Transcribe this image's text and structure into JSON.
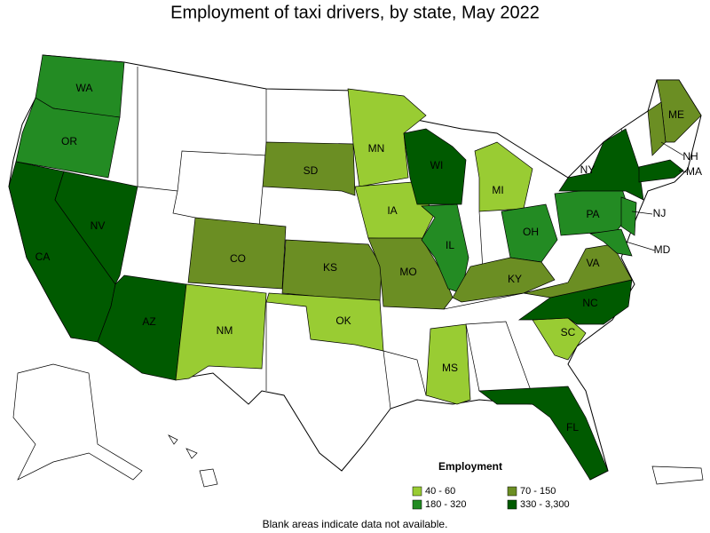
{
  "title": "Employment of taxi drivers, by state, May 2022",
  "legend": {
    "title": "Employment",
    "items": [
      {
        "label": "40 - 60",
        "color": "#99cc33"
      },
      {
        "label": "70 - 150",
        "color": "#6b8e23"
      },
      {
        "label": "180 - 320",
        "color": "#238b23"
      },
      {
        "label": "330 - 3,300",
        "color": "#005a00"
      }
    ]
  },
  "states": [
    {
      "label": "WA",
      "color": "#238b23"
    },
    {
      "label": "OR",
      "color": "#238b23"
    },
    {
      "label": "CA",
      "color": "#005a00"
    },
    {
      "label": "NV",
      "color": "#005a00"
    },
    {
      "label": "AZ",
      "color": "#005a00"
    },
    {
      "label": "NM",
      "color": "#99cc33"
    },
    {
      "label": "CO",
      "color": "#6b8e23"
    },
    {
      "label": "SD",
      "color": "#6b8e23"
    },
    {
      "label": "KS",
      "color": "#6b8e23"
    },
    {
      "label": "OK",
      "color": "#99cc33"
    },
    {
      "label": "MN",
      "color": "#99cc33"
    },
    {
      "label": "IA",
      "color": "#99cc33"
    },
    {
      "label": "MO",
      "color": "#6b8e23"
    },
    {
      "label": "WI",
      "color": "#005a00"
    },
    {
      "label": "IL",
      "color": "#238b23"
    },
    {
      "label": "MI",
      "color": "#99cc33"
    },
    {
      "label": "OH",
      "color": "#238b23"
    },
    {
      "label": "KY",
      "color": "#6b8e23"
    },
    {
      "label": "MS",
      "color": "#99cc33"
    },
    {
      "label": "FL",
      "color": "#005a00"
    },
    {
      "label": "SC",
      "color": "#99cc33"
    },
    {
      "label": "NC",
      "color": "#005a00"
    },
    {
      "label": "VA",
      "color": "#6b8e23"
    },
    {
      "label": "PA",
      "color": "#238b23"
    },
    {
      "label": "NY",
      "color": "#005a00"
    },
    {
      "label": "ME",
      "color": "#6b8e23"
    },
    {
      "label": "NH",
      "color": "#6b8e23"
    },
    {
      "label": "MA",
      "color": "#005a00"
    },
    {
      "label": "NJ",
      "color": "#238b23"
    },
    {
      "label": "MD",
      "color": "#238b23"
    }
  ],
  "note": "Blank areas indicate data not available."
}
